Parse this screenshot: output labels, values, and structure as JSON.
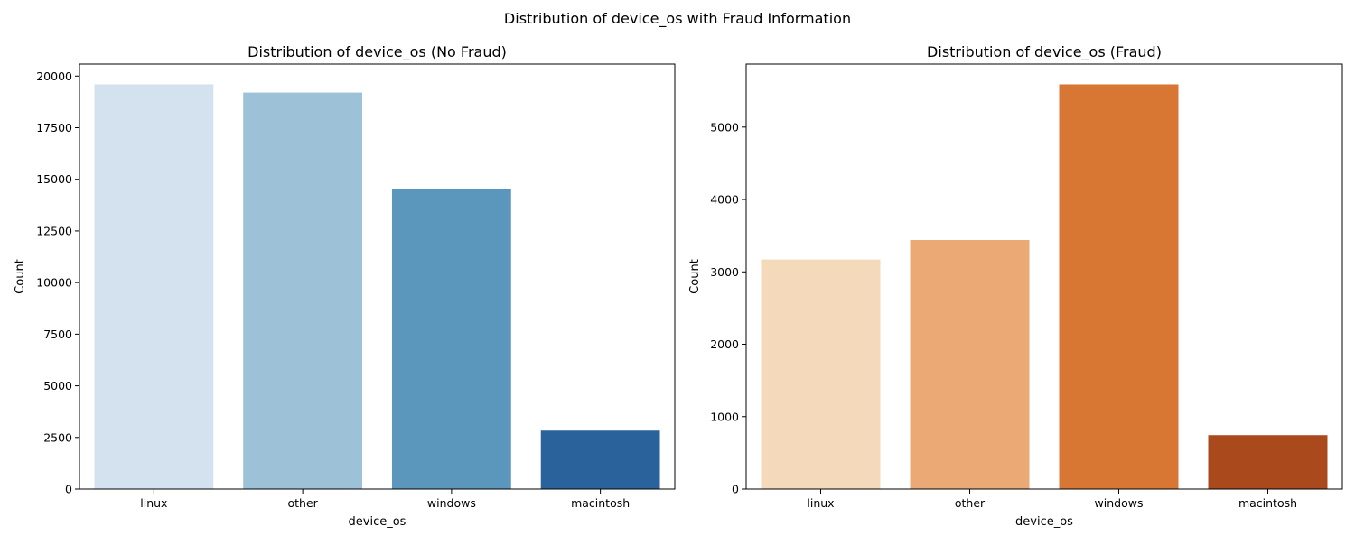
{
  "figure": {
    "title": "Distribution of device_os with Fraud Information"
  },
  "chart_data": [
    {
      "type": "bar",
      "title": "Distribution of device_os (No Fraud)",
      "xlabel": "device_os",
      "ylabel": "Count",
      "categories": [
        "linux",
        "other",
        "windows",
        "macintosh"
      ],
      "values": [
        19600,
        19200,
        14540,
        2830
      ],
      "colors": [
        "#d4e2f0",
        "#9dc1d6",
        "#5b96bc",
        "#2a639b"
      ],
      "ylim": [
        0,
        20580
      ],
      "yticks": [
        0,
        2500,
        5000,
        7500,
        10000,
        12500,
        15000,
        17500,
        20000
      ]
    },
    {
      "type": "bar",
      "title": "Distribution of device_os (Fraud)",
      "xlabel": "device_os",
      "ylabel": "Count",
      "categories": [
        "linux",
        "other",
        "windows",
        "macintosh"
      ],
      "values": [
        3170,
        3440,
        5590,
        745
      ],
      "colors": [
        "#f4d9ba",
        "#eba975",
        "#d87734",
        "#a9491c"
      ],
      "ylim": [
        0,
        5870
      ],
      "yticks": [
        0,
        1000,
        2000,
        3000,
        4000,
        5000
      ]
    }
  ]
}
